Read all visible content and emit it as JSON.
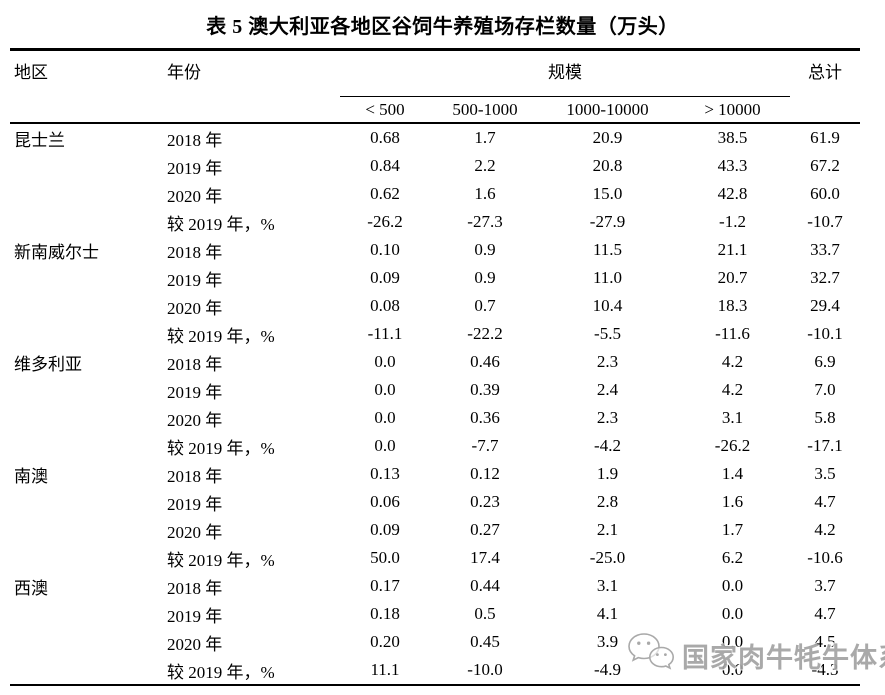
{
  "title": "表 5 澳大利亚各地区谷饲牛养殖场存栏数量（万头）",
  "table": {
    "header": {
      "region": "地区",
      "year": "年份",
      "scale_group": "规模",
      "total": "总计",
      "scale_cols": [
        "< 500",
        "500-1000",
        "1000-10000",
        "> 10000"
      ]
    },
    "regions": [
      {
        "name": "昆士兰",
        "rows": [
          {
            "year": "2018 年",
            "values": [
              "0.68",
              "1.7",
              "20.9",
              "38.5",
              "61.9"
            ]
          },
          {
            "year": "2019 年",
            "values": [
              "0.84",
              "2.2",
              "20.8",
              "43.3",
              "67.2"
            ]
          },
          {
            "year": "2020 年",
            "values": [
              "0.62",
              "1.6",
              "15.0",
              "42.8",
              "60.0"
            ]
          },
          {
            "year": "较 2019 年，%",
            "values": [
              "-26.2",
              "-27.3",
              "-27.9",
              "-1.2",
              "-10.7"
            ]
          }
        ]
      },
      {
        "name": "新南威尔士",
        "rows": [
          {
            "year": "2018 年",
            "values": [
              "0.10",
              "0.9",
              "11.5",
              "21.1",
              "33.7"
            ]
          },
          {
            "year": "2019 年",
            "values": [
              "0.09",
              "0.9",
              "11.0",
              "20.7",
              "32.7"
            ]
          },
          {
            "year": "2020 年",
            "values": [
              "0.08",
              "0.7",
              "10.4",
              "18.3",
              "29.4"
            ]
          },
          {
            "year": "较 2019 年，%",
            "values": [
              "-11.1",
              "-22.2",
              "-5.5",
              "-11.6",
              "-10.1"
            ]
          }
        ]
      },
      {
        "name": "维多利亚",
        "rows": [
          {
            "year": "2018 年",
            "values": [
              "0.0",
              "0.46",
              "2.3",
              "4.2",
              "6.9"
            ]
          },
          {
            "year": "2019 年",
            "values": [
              "0.0",
              "0.39",
              "2.4",
              "4.2",
              "7.0"
            ]
          },
          {
            "year": "2020 年",
            "values": [
              "0.0",
              "0.36",
              "2.3",
              "3.1",
              "5.8"
            ]
          },
          {
            "year": "较 2019 年，%",
            "values": [
              "0.0",
              "-7.7",
              "-4.2",
              "-26.2",
              "-17.1"
            ]
          }
        ]
      },
      {
        "name": "南澳",
        "rows": [
          {
            "year": "2018 年",
            "values": [
              "0.13",
              "0.12",
              "1.9",
              "1.4",
              "3.5"
            ]
          },
          {
            "year": "2019 年",
            "values": [
              "0.06",
              "0.23",
              "2.8",
              "1.6",
              "4.7"
            ]
          },
          {
            "year": "2020 年",
            "values": [
              "0.09",
              "0.27",
              "2.1",
              "1.7",
              "4.2"
            ]
          },
          {
            "year": "较 2019 年，%",
            "values": [
              "50.0",
              "17.4",
              "-25.0",
              "6.2",
              "-10.6"
            ]
          }
        ]
      },
      {
        "name": "西澳",
        "rows": [
          {
            "year": "2018 年",
            "values": [
              "0.17",
              "0.44",
              "3.1",
              "0.0",
              "3.7"
            ]
          },
          {
            "year": "2019 年",
            "values": [
              "0.18",
              "0.5",
              "4.1",
              "0.0",
              "4.7"
            ]
          },
          {
            "year": "2020 年",
            "values": [
              "0.20",
              "0.45",
              "3.9",
              "0.0",
              "4.5"
            ]
          },
          {
            "year": "较 2019 年，%",
            "values": [
              "11.1",
              "-10.0",
              "-4.9",
              "0.0",
              "-4.3"
            ]
          }
        ]
      }
    ]
  },
  "watermark": {
    "text": "国家肉牛牦牛体系",
    "icon": "wechat-icon",
    "color": "#a2a2a2"
  }
}
